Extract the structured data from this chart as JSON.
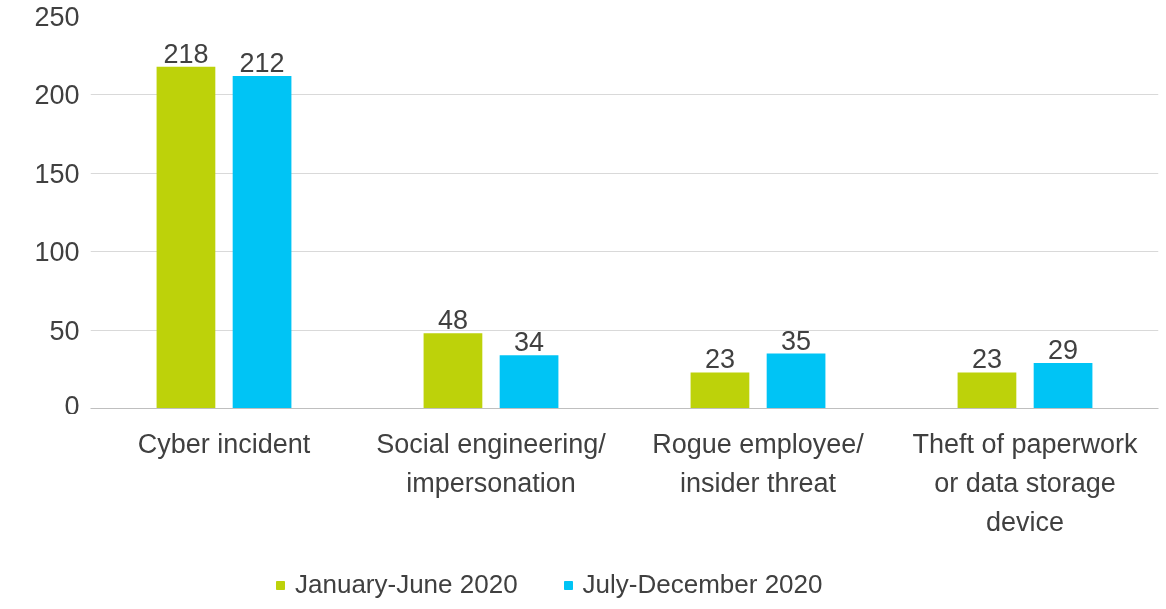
{
  "chart_data": {
    "type": "bar",
    "categories": [
      "Cyber incident",
      "Social engineering/\nimpersonation",
      "Rogue employee/\ninsider threat",
      "Theft of paperwork\nor data storage\ndevice"
    ],
    "series": [
      {
        "name": "January-June 2020",
        "color": "#bdd20a",
        "values": [
          218,
          48,
          23,
          23
        ]
      },
      {
        "name": "July-December 2020",
        "color": "#00c4f5",
        "values": [
          212,
          34,
          35,
          29
        ]
      }
    ],
    "ylim": [
      0,
      250
    ],
    "yticks": [
      0,
      50,
      100,
      150,
      200,
      250
    ],
    "grid": "y",
    "legend": "bottom",
    "data_labels": true
  }
}
